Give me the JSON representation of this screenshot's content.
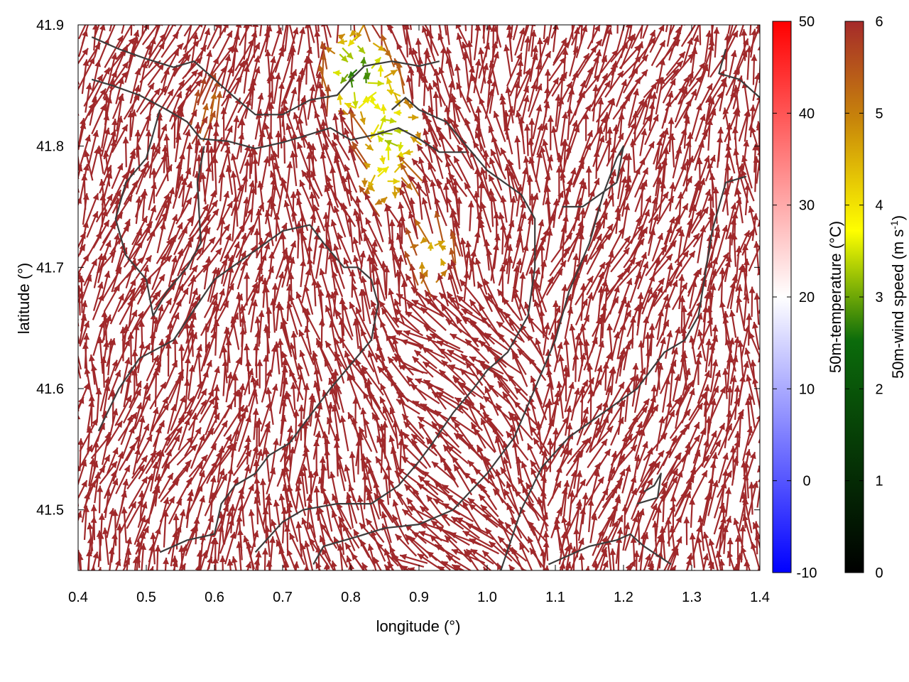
{
  "chart_data": {
    "type": "vector-field",
    "xlabel": "longitude (°)",
    "ylabel": "latitude (°)",
    "xlim": [
      0.4,
      1.4
    ],
    "ylim": [
      41.45,
      41.9
    ],
    "x_ticks": [
      "0.4",
      "0.5",
      "0.6",
      "0.7",
      "0.8",
      "0.9",
      "1.0",
      "1.1",
      "1.2",
      "1.3",
      "1.4"
    ],
    "y_ticks": [
      "41.5",
      "41.6",
      "41.7",
      "41.8",
      "41.9"
    ],
    "grid": false,
    "temperature_colorbar": {
      "label": "50m-temperature (°C)",
      "range": [
        -10,
        50
      ],
      "ticks": [
        "-10",
        "0",
        "10",
        "20",
        "30",
        "40",
        "50"
      ],
      "colors": [
        "#0000ff",
        "#ffffff",
        "#ff0000"
      ]
    },
    "wind_colorbar": {
      "label_main": "50m-wind speed (m s",
      "label_sup": "-1",
      "label_end": ")",
      "range": [
        0,
        6
      ],
      "ticks": [
        "0",
        "1",
        "2",
        "3",
        "4",
        "5",
        "6"
      ],
      "colors": [
        "#000000",
        "#006400",
        "#ffff00",
        "#a52a2a"
      ]
    },
    "arrow_color_saturated": "#a0292b",
    "coastline_color": "#3c3c3c",
    "low_wind_zones": [
      {
        "lon": 0.84,
        "lat": 41.84,
        "speed": 3.6
      },
      {
        "lon": 0.85,
        "lat": 41.78,
        "speed": 3.8
      },
      {
        "lon": 0.81,
        "lat": 41.86,
        "speed": 2.6
      },
      {
        "lon": 0.86,
        "lat": 41.81,
        "speed": 3.2
      },
      {
        "lon": 0.92,
        "lat": 41.71,
        "speed": 4.3
      },
      {
        "lon": 0.59,
        "lat": 41.83,
        "speed": 5.2
      }
    ],
    "coastlines": [
      [
        [
          0.42,
          41.89
        ],
        [
          0.46,
          41.88
        ],
        [
          0.5,
          41.872
        ],
        [
          0.54,
          41.865
        ],
        [
          0.57,
          41.87
        ],
        [
          0.6,
          41.855
        ],
        [
          0.63,
          41.84
        ],
        [
          0.66,
          41.826
        ],
        [
          0.7,
          41.826
        ],
        [
          0.74,
          41.838
        ],
        [
          0.78,
          41.842
        ],
        [
          0.8,
          41.855
        ],
        [
          0.82,
          41.866
        ],
        [
          0.86,
          41.87
        ],
        [
          0.9,
          41.866
        ],
        [
          0.93,
          41.87
        ]
      ],
      [
        [
          0.42,
          41.855
        ],
        [
          0.45,
          41.85
        ],
        [
          0.49,
          41.842
        ],
        [
          0.53,
          41.83
        ],
        [
          0.56,
          41.82
        ],
        [
          0.58,
          41.806
        ],
        [
          0.62,
          41.804
        ],
        [
          0.66,
          41.798
        ],
        [
          0.7,
          41.803
        ],
        [
          0.73,
          41.808
        ],
        [
          0.77,
          41.815
        ],
        [
          0.8,
          41.805
        ],
        [
          0.84,
          41.81
        ],
        [
          0.87,
          41.815
        ],
        [
          0.9,
          41.806
        ],
        [
          0.93,
          41.795
        ],
        [
          0.97,
          41.795
        ]
      ],
      [
        [
          0.52,
          41.83
        ],
        [
          0.5,
          41.79
        ],
        [
          0.47,
          41.77
        ],
        [
          0.455,
          41.74
        ],
        [
          0.47,
          41.71
        ],
        [
          0.5,
          41.69
        ],
        [
          0.51,
          41.66
        ],
        [
          0.53,
          41.68
        ],
        [
          0.56,
          41.7
        ],
        [
          0.58,
          41.72
        ],
        [
          0.575,
          41.77
        ],
        [
          0.585,
          41.8
        ]
      ],
      [
        [
          0.43,
          41.565
        ],
        [
          0.46,
          41.6
        ],
        [
          0.49,
          41.625
        ],
        [
          0.54,
          41.64
        ],
        [
          0.6,
          41.69
        ],
        [
          0.65,
          41.71
        ],
        [
          0.7,
          41.73
        ],
        [
          0.74,
          41.735
        ],
        [
          0.76,
          41.72
        ],
        [
          0.79,
          41.7
        ],
        [
          0.81,
          41.7
        ],
        [
          0.83,
          41.69
        ],
        [
          0.84,
          41.67
        ],
        [
          0.83,
          41.64
        ],
        [
          0.8,
          41.62
        ],
        [
          0.77,
          41.6
        ],
        [
          0.73,
          41.57
        ],
        [
          0.71,
          41.555
        ],
        [
          0.68,
          41.545
        ],
        [
          0.66,
          41.53
        ],
        [
          0.63,
          41.52
        ],
        [
          0.61,
          41.505
        ],
        [
          0.6,
          41.48
        ],
        [
          0.56,
          41.475
        ],
        [
          0.52,
          41.465
        ]
      ],
      [
        [
          0.66,
          41.465
        ],
        [
          0.7,
          41.49
        ],
        [
          0.73,
          41.5
        ],
        [
          0.78,
          41.505
        ],
        [
          0.83,
          41.505
        ],
        [
          0.87,
          41.52
        ],
        [
          0.9,
          41.54
        ],
        [
          0.92,
          41.555
        ],
        [
          0.95,
          41.58
        ],
        [
          0.98,
          41.6
        ],
        [
          1.0,
          41.615
        ],
        [
          1.03,
          41.63
        ],
        [
          1.06,
          41.66
        ],
        [
          1.07,
          41.7
        ],
        [
          1.07,
          41.74
        ],
        [
          1.05,
          41.76
        ],
        [
          1.0,
          41.78
        ],
        [
          0.97,
          41.8
        ],
        [
          0.94,
          41.82
        ],
        [
          0.9,
          41.83
        ],
        [
          0.88,
          41.84
        ],
        [
          0.86,
          41.83
        ]
      ],
      [
        [
          0.745,
          41.455
        ],
        [
          0.76,
          41.47
        ],
        [
          0.81,
          41.478
        ],
        [
          0.85,
          41.485
        ],
        [
          0.9,
          41.488
        ],
        [
          0.95,
          41.5
        ],
        [
          1.0,
          41.53
        ],
        [
          1.04,
          41.56
        ],
        [
          1.07,
          41.6
        ],
        [
          1.1,
          41.64
        ],
        [
          1.12,
          41.68
        ],
        [
          1.15,
          41.72
        ],
        [
          1.17,
          41.76
        ],
        [
          1.19,
          41.79
        ],
        [
          1.2,
          41.8
        ],
        [
          1.19,
          41.77
        ],
        [
          1.14,
          41.75
        ],
        [
          1.11,
          41.75
        ]
      ],
      [
        [
          1.02,
          41.45
        ],
        [
          1.05,
          41.5
        ],
        [
          1.08,
          41.535
        ],
        [
          1.12,
          41.56
        ],
        [
          1.17,
          41.58
        ],
        [
          1.22,
          41.6
        ],
        [
          1.26,
          41.63
        ],
        [
          1.29,
          41.64
        ],
        [
          1.31,
          41.66
        ],
        [
          1.33,
          41.73
        ],
        [
          1.35,
          41.77
        ],
        [
          1.38,
          41.775
        ]
      ],
      [
        [
          1.09,
          41.455
        ],
        [
          1.15,
          41.47
        ],
        [
          1.19,
          41.475
        ],
        [
          1.21,
          41.48
        ],
        [
          1.23,
          41.47
        ],
        [
          1.27,
          41.455
        ]
      ],
      [
        [
          1.22,
          41.505
        ],
        [
          1.25,
          41.51
        ],
        [
          1.255,
          41.53
        ],
        [
          1.245,
          41.52
        ],
        [
          1.23,
          41.515
        ]
      ],
      [
        [
          1.35,
          41.88
        ],
        [
          1.34,
          41.86
        ],
        [
          1.37,
          41.855
        ],
        [
          1.4,
          41.84
        ]
      ]
    ]
  }
}
